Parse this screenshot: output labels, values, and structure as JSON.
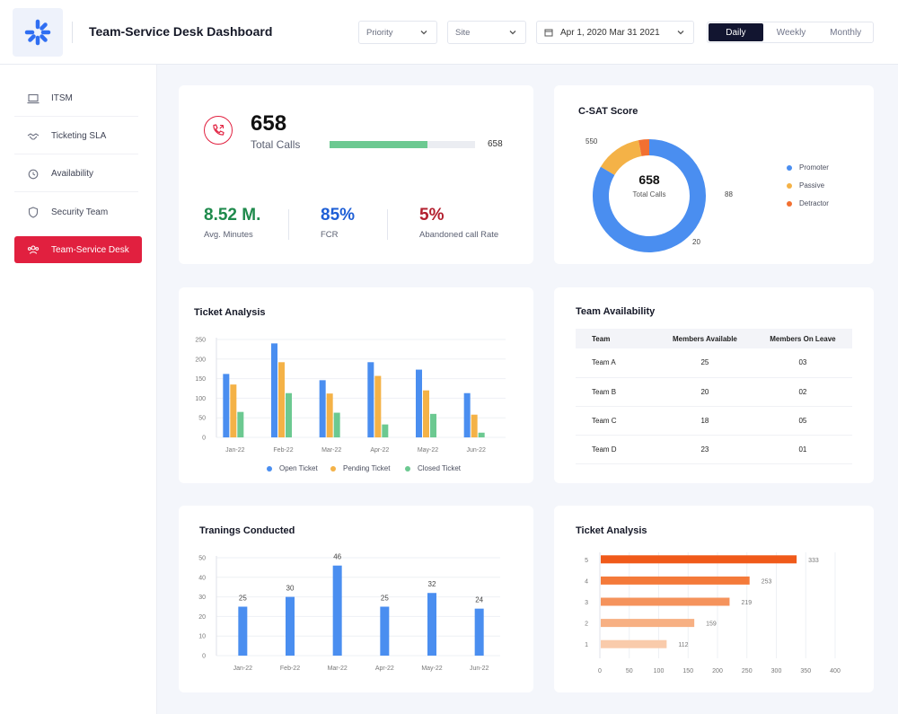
{
  "header": {
    "title": "Team-Service Desk Dashboard",
    "priority": "Priority",
    "site": "Site",
    "date_range": "Apr 1, 2020 Mar 31 2021",
    "periods": [
      "Daily",
      "Weekly",
      "Monthly"
    ],
    "active_period": "Daily"
  },
  "sidebar": {
    "items": [
      {
        "label": "ITSM",
        "icon": "laptop-icon"
      },
      {
        "label": "Ticketing SLA",
        "icon": "handshake-icon"
      },
      {
        "label": "Availability",
        "icon": "clock-icon"
      },
      {
        "label": "Security Team",
        "icon": "shield-icon"
      },
      {
        "label": "Team-Service Desk",
        "icon": "team-icon"
      }
    ],
    "active_index": 4
  },
  "calls": {
    "value": "658",
    "label": "Total Calls",
    "bar_value": "658",
    "bar_fraction": 0.67,
    "metrics": [
      {
        "value": "8.52 M.",
        "label": "Avg. Minutes",
        "color": "#1f8a4c"
      },
      {
        "value": "85%",
        "label": "FCR",
        "color": "#1e5fd6"
      },
      {
        "value": "5%",
        "label": "Abandoned call Rate",
        "color": "#b3202f"
      }
    ]
  },
  "csat": {
    "title": "C-SAT Score",
    "center_value": "658",
    "center_label": "Total Calls",
    "segments": [
      {
        "name": "Promoter",
        "value": 550,
        "label": "550",
        "color": "#4a8ef0"
      },
      {
        "name": "Passive",
        "value": 88,
        "label": "88",
        "color": "#f4b247"
      },
      {
        "name": "Detractor",
        "value": 20,
        "label": "20",
        "color": "#f27031"
      }
    ]
  },
  "ticket_analysis": {
    "title": "Ticket Analysis",
    "chart_data": {
      "type": "bar",
      "categories": [
        "Jan-22",
        "Feb-22",
        "Mar-22",
        "Apr-22",
        "May-22",
        "Jun-22"
      ],
      "series": [
        {
          "name": "Open Ticket",
          "values": [
            162,
            240,
            146,
            192,
            173,
            113
          ],
          "color": "#4a8ef0"
        },
        {
          "name": "Pending Ticket",
          "values": [
            135,
            192,
            112,
            157,
            120,
            58
          ],
          "color": "#f4b247"
        },
        {
          "name": "Closed Ticket",
          "values": [
            65,
            113,
            63,
            33,
            60,
            12
          ],
          "color": "#6cc991"
        }
      ],
      "ylim": [
        0,
        250
      ],
      "yticks": [
        "0",
        "50",
        "100",
        "150",
        "200",
        "250"
      ],
      "grid": true,
      "legend": "bottom"
    }
  },
  "team_availability": {
    "title": "Team Availability",
    "columns": [
      "Team",
      "Members Available",
      "Members On Leave"
    ],
    "rows": [
      [
        "Team A",
        "25",
        "03"
      ],
      [
        "Team B",
        "20",
        "02"
      ],
      [
        "Team C",
        "18",
        "05"
      ],
      [
        "Team D",
        "23",
        "01"
      ]
    ]
  },
  "trainings": {
    "title": "Tranings Conducted",
    "chart_data": {
      "type": "bar",
      "categories": [
        "Jan-22",
        "Feb-22",
        "Mar-22",
        "Apr-22",
        "May-22",
        "Jun-22"
      ],
      "values": [
        25,
        30,
        46,
        25,
        32,
        24
      ],
      "ylim": [
        0,
        50
      ],
      "yticks": [
        "0",
        "10",
        "20",
        "30",
        "40",
        "50"
      ],
      "color": "#4a8ef0",
      "grid": true
    }
  },
  "ticket_analysis_2": {
    "title": "Ticket Analysis",
    "chart_data": {
      "type": "bar",
      "orientation": "horizontal",
      "categories": [
        "5",
        "4",
        "3",
        "2",
        "1"
      ],
      "values": [
        333,
        253,
        219,
        159,
        112
      ],
      "colors": [
        "#f05a1a",
        "#f47a3a",
        "#f5935c",
        "#f7b083",
        "#f9cbab"
      ],
      "xlim": [
        0,
        400
      ],
      "xticks": [
        "0",
        "50",
        "100",
        "150",
        "200",
        "250",
        "300",
        "350",
        "400"
      ],
      "grid": true
    }
  }
}
